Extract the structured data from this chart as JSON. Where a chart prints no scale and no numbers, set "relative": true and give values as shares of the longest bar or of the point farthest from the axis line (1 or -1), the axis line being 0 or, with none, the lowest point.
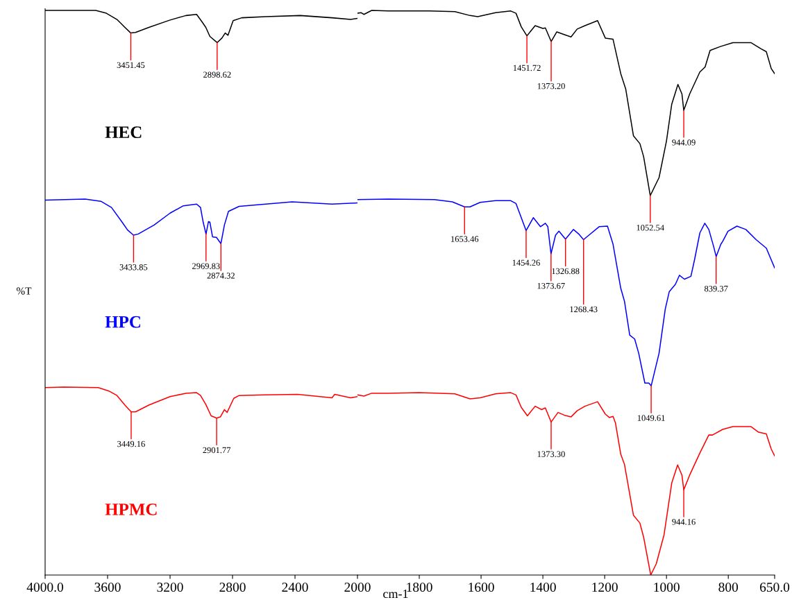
{
  "chart_data": [
    {
      "type": "line",
      "relative": true,
      "ylabel": "%T",
      "tick_labels": "x",
      "marker": "none",
      "line_style": "solid",
      "xlim": [
        4000,
        2000
      ],
      "xticks": [
        {
          "value": 4000,
          "label": "4000.0"
        },
        3600,
        3200,
        2800,
        2400,
        2000
      ],
      "series": [
        {
          "name": "HEC",
          "color": "#000000",
          "x": [
            4000,
            3676,
            3608,
            3540,
            3489,
            3451.45,
            3421,
            3336,
            3200,
            3098,
            3030,
            2996,
            2971,
            2945,
            2898.62,
            2868,
            2847,
            2829,
            2796,
            2741,
            2588,
            2367,
            2163,
            2044,
            2000
          ],
          "values": [
            1.0,
            1.0,
            0.995,
            0.984,
            0.97,
            0.96,
            0.961,
            0.97,
            0.983,
            0.991,
            0.993,
            0.98,
            0.97,
            0.954,
            0.943,
            0.951,
            0.96,
            0.956,
            0.982,
            0.987,
            0.989,
            0.991,
            0.987,
            0.984,
            0.986
          ]
        },
        {
          "name": "HPC",
          "color": "#0000ff",
          "x": [
            4000,
            3744,
            3643,
            3575,
            3507,
            3472,
            3433.85,
            3404,
            3302,
            3200,
            3115,
            3030,
            3005,
            2988,
            2969.83,
            2954,
            2945,
            2928,
            2903,
            2874.32,
            2852,
            2826,
            2758,
            2588,
            2418,
            2163,
            2000
          ],
          "values": [
            0.664,
            0.666,
            0.662,
            0.651,
            0.625,
            0.611,
            0.602,
            0.604,
            0.62,
            0.641,
            0.654,
            0.657,
            0.651,
            0.625,
            0.604,
            0.626,
            0.625,
            0.599,
            0.598,
            0.587,
            0.62,
            0.644,
            0.653,
            0.657,
            0.661,
            0.657,
            0.659
          ]
        },
        {
          "name": "HPMC",
          "color": "#ff0000",
          "x": [
            4000,
            3881,
            3660,
            3592,
            3540,
            3489,
            3449.16,
            3421,
            3336,
            3200,
            3098,
            3030,
            3005,
            2971,
            2937,
            2901.77,
            2878,
            2852,
            2835,
            2792,
            2758,
            2588,
            2384,
            2163,
            2146,
            2044,
            2000
          ],
          "values": [
            0.332,
            0.333,
            0.332,
            0.326,
            0.318,
            0.301,
            0.289,
            0.289,
            0.301,
            0.316,
            0.322,
            0.323,
            0.318,
            0.302,
            0.282,
            0.278,
            0.28,
            0.293,
            0.288,
            0.313,
            0.318,
            0.319,
            0.32,
            0.314,
            0.32,
            0.314,
            0.316
          ]
        }
      ],
      "annotations": [
        {
          "text": "3451.45",
          "x": 3451.45,
          "y": 0.96
        },
        {
          "text": "2898.62",
          "x": 2898.62,
          "y": 0.943
        },
        {
          "text": "3433.85",
          "x": 3433.85,
          "y": 0.602
        },
        {
          "text": "2969.83",
          "x": 2969.83,
          "y": 0.604
        },
        {
          "text": "2874.32",
          "x": 2874.32,
          "y": 0.587
        },
        {
          "text": "3449.16",
          "x": 3449.16,
          "y": 0.289
        },
        {
          "text": "2901.77",
          "x": 2901.77,
          "y": 0.278
        }
      ]
    },
    {
      "type": "line",
      "relative": true,
      "xlabel": "cm-1",
      "tick_labels": "x",
      "marker": "none",
      "line_style": "solid",
      "xlim": [
        2000,
        650
      ],
      "xticks": [
        1800,
        1600,
        1400,
        1200,
        1000,
        800,
        {
          "value": 650,
          "label": "650.0"
        }
      ],
      "series": [
        {
          "color": "#000000",
          "x": [
            2000,
            1988,
            1979,
            1954,
            1900,
            1768,
            1685,
            1636,
            1611,
            1553,
            1504,
            1487,
            1470,
            1451.72,
            1425,
            1400,
            1392,
            1373.2,
            1355,
            1330,
            1309,
            1289,
            1264,
            1223,
            1198,
            1173,
            1148,
            1132,
            1107,
            1086,
            1074,
            1052.54,
            1024,
            1000,
            983,
            963,
            950,
            944.09,
            925,
            892,
            875,
            859,
            826,
            785,
            727,
            694,
            677,
            661,
            650
          ],
          "values": [
            0.995,
            0.996,
            0.993,
            1.0,
            0.999,
            0.999,
            0.998,
            0.991,
            0.989,
            0.996,
            0.999,
            0.995,
            0.971,
            0.955,
            0.973,
            0.968,
            0.969,
            0.945,
            0.962,
            0.957,
            0.953,
            0.967,
            0.973,
            0.982,
            0.951,
            0.949,
            0.888,
            0.861,
            0.778,
            0.764,
            0.741,
            0.672,
            0.704,
            0.769,
            0.834,
            0.869,
            0.852,
            0.823,
            0.852,
            0.891,
            0.9,
            0.929,
            0.936,
            0.943,
            0.943,
            0.932,
            0.927,
            0.897,
            0.888
          ]
        },
        {
          "color": "#0000ff",
          "x": [
            2000,
            1900,
            1751,
            1693,
            1653.46,
            1636,
            1603,
            1553,
            1504,
            1487,
            1470,
            1454.26,
            1431,
            1408,
            1392,
            1384,
            1373.67,
            1359,
            1348,
            1326.88,
            1301,
            1284,
            1268.43,
            1251,
            1218,
            1191,
            1173,
            1148,
            1136,
            1119,
            1103,
            1090,
            1070,
            1057,
            1049.61,
            1024,
            1004,
            991,
            971,
            958,
            942,
            921,
            909,
            892,
            876,
            863,
            847,
            839.37,
            824,
            818,
            801,
            772,
            743,
            710,
            677,
            650
          ],
          "values": [
            0.665,
            0.666,
            0.665,
            0.661,
            0.652,
            0.652,
            0.66,
            0.663,
            0.663,
            0.658,
            0.633,
            0.61,
            0.633,
            0.617,
            0.623,
            0.617,
            0.569,
            0.602,
            0.609,
            0.595,
            0.612,
            0.604,
            0.594,
            0.602,
            0.617,
            0.618,
            0.586,
            0.508,
            0.485,
            0.425,
            0.418,
            0.393,
            0.34,
            0.34,
            0.335,
            0.393,
            0.471,
            0.502,
            0.515,
            0.531,
            0.524,
            0.529,
            0.559,
            0.606,
            0.623,
            0.612,
            0.581,
            0.564,
            0.586,
            0.591,
            0.609,
            0.618,
            0.612,
            0.594,
            0.579,
            0.544
          ]
        },
        {
          "color": "#ff0000",
          "x": [
            2000,
            1979,
            1954,
            1900,
            1801,
            1685,
            1636,
            1603,
            1553,
            1504,
            1487,
            1470,
            1450,
            1425,
            1404,
            1392,
            1373.3,
            1351,
            1330,
            1309,
            1289,
            1264,
            1223,
            1198,
            1185,
            1173,
            1165,
            1148,
            1136,
            1107,
            1086,
            1074,
            1051,
            1033,
            1008,
            983,
            964,
            950,
            944.16,
            925,
            892,
            863,
            851,
            818,
            785,
            727,
            702,
            677,
            661,
            650
          ],
          "values": [
            0.319,
            0.317,
            0.322,
            0.322,
            0.323,
            0.321,
            0.312,
            0.314,
            0.321,
            0.323,
            0.319,
            0.297,
            0.282,
            0.299,
            0.293,
            0.296,
            0.271,
            0.288,
            0.283,
            0.28,
            0.291,
            0.299,
            0.307,
            0.285,
            0.279,
            0.281,
            0.269,
            0.214,
            0.196,
            0.106,
            0.092,
            0.067,
            0.0,
            0.02,
            0.071,
            0.163,
            0.195,
            0.177,
            0.151,
            0.177,
            0.216,
            0.248,
            0.248,
            0.258,
            0.263,
            0.263,
            0.253,
            0.25,
            0.223,
            0.211
          ]
        }
      ],
      "annotations": [
        {
          "text": "1451.72",
          "x": 1451.72,
          "y": 0.955
        },
        {
          "text": "1373.20",
          "x": 1373.2,
          "y": 0.945
        },
        {
          "text": "944.09",
          "x": 944.09,
          "y": 0.823
        },
        {
          "text": "1052.54",
          "x": 1052.54,
          "y": 0.672
        },
        {
          "text": "1653.46",
          "x": 1653.46,
          "y": 0.652
        },
        {
          "text": "1454.26",
          "x": 1454.26,
          "y": 0.61
        },
        {
          "text": "1373.67",
          "x": 1373.67,
          "y": 0.569
        },
        {
          "text": "1326.88",
          "x": 1326.88,
          "y": 0.595
        },
        {
          "text": "1268.43",
          "x": 1268.43,
          "y": 0.594
        },
        {
          "text": "839.37",
          "x": 839.37,
          "y": 0.564
        },
        {
          "text": "1049.61",
          "x": 1049.61,
          "y": 0.335
        },
        {
          "text": "1373.30",
          "x": 1373.3,
          "y": 0.271
        },
        {
          "text": "944.16",
          "x": 944.16,
          "y": 0.151
        }
      ]
    }
  ]
}
